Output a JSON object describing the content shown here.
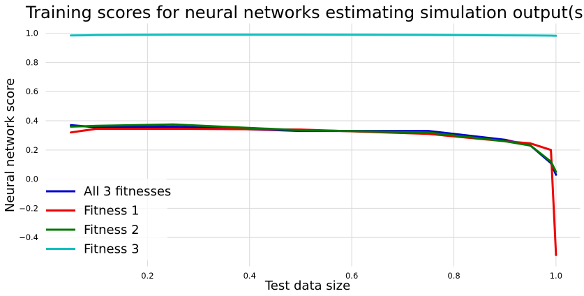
{
  "chart_data": {
    "type": "line",
    "title": "Training scores for neural networks estimating simulation output(s)",
    "xlabel": "Test data size",
    "ylabel": "Neural network score",
    "xlim": [
      0.0,
      1.048
    ],
    "ylim": [
      -0.6,
      1.07
    ],
    "xticks": [
      0.2,
      0.4,
      0.6,
      0.8,
      1.0
    ],
    "xtick_labels": [
      "0.2",
      "0.4",
      "0.6",
      "0.8",
      "1.0"
    ],
    "yticks": [
      -0.4,
      -0.2,
      0.0,
      0.2,
      0.4,
      0.6,
      0.8,
      1.0
    ],
    "ytick_labels": [
      "−0.4",
      "−0.2",
      "0.0",
      "0.2",
      "0.4",
      "0.6",
      "0.8",
      "1.0"
    ],
    "grid": true,
    "legend_position": "lower-left",
    "series": [
      {
        "name": "All 3 fitnesses",
        "color": "#0000cc",
        "x": [
          0.05,
          0.1,
          0.25,
          0.5,
          0.75,
          0.9,
          0.95,
          0.99,
          1.0
        ],
        "y": [
          0.37,
          0.355,
          0.36,
          0.33,
          0.33,
          0.27,
          0.23,
          0.11,
          0.03
        ]
      },
      {
        "name": "Fitness 1",
        "color": "#ee0000",
        "x": [
          0.05,
          0.1,
          0.25,
          0.5,
          0.75,
          0.9,
          0.95,
          0.99,
          1.0
        ],
        "y": [
          0.32,
          0.345,
          0.345,
          0.34,
          0.31,
          0.26,
          0.245,
          0.2,
          -0.52
        ]
      },
      {
        "name": "Fitness 2",
        "color": "#007700",
        "x": [
          0.05,
          0.1,
          0.25,
          0.5,
          0.75,
          0.9,
          0.95,
          0.99,
          1.0
        ],
        "y": [
          0.36,
          0.365,
          0.375,
          0.335,
          0.32,
          0.26,
          0.23,
          0.12,
          0.05
        ]
      },
      {
        "name": "Fitness 3",
        "color": "#11bfbf",
        "x": [
          0.05,
          0.1,
          0.25,
          0.5,
          0.75,
          0.9,
          0.95,
          0.99,
          1.0
        ],
        "y": [
          0.985,
          0.987,
          0.99,
          0.99,
          0.988,
          0.986,
          0.985,
          0.984,
          0.983
        ]
      }
    ]
  }
}
